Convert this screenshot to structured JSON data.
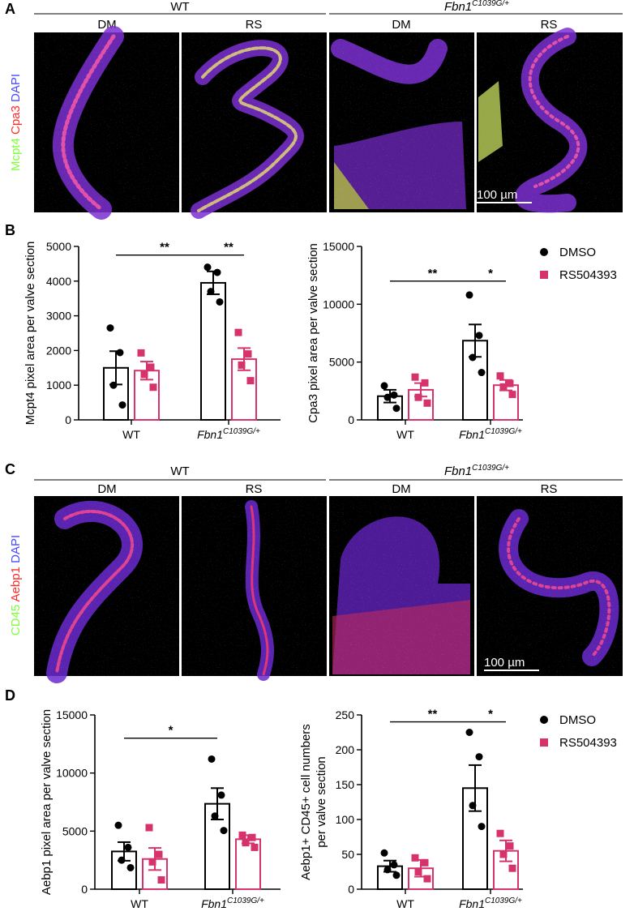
{
  "panels": {
    "A": {
      "letter": "A",
      "group_labels": [
        "WT",
        "Fbn1",
        "C1039G/+"
      ],
      "column_labels": [
        "DM",
        "RS",
        "DM",
        "RS"
      ],
      "stain_labels": [
        "Mcpt4",
        "Cpa3",
        "DAPI"
      ],
      "scale_bar": "100 µm"
    },
    "B": {
      "letter": "B"
    },
    "C": {
      "letter": "C",
      "group_labels": [
        "WT",
        "Fbn1",
        "C1039G/+"
      ],
      "column_labels": [
        "DM",
        "RS",
        "DM",
        "RS"
      ],
      "stain_labels": [
        "CD45",
        "Aebp1",
        "DAPI"
      ],
      "scale_bar": "100 µm"
    },
    "D": {
      "letter": "D"
    }
  },
  "legend": {
    "dmso": "DMSO",
    "rs": "RS504393",
    "colors": {
      "dmso": "#000000",
      "rs": "#d6336c"
    }
  },
  "chart_data": [
    {
      "id": "B-left",
      "type": "bar",
      "ylabel": "Mcpt4 pixel area per valve section",
      "ylim": [
        0,
        5000
      ],
      "yticks": [
        0,
        1000,
        2000,
        3000,
        4000,
        5000
      ],
      "categories": [
        "WT",
        "Fbn1 C1039G/+"
      ],
      "category_text": [
        {
          "main": "WT",
          "sup": ""
        },
        {
          "main": "Fbn1",
          "sup": "C1039G/+"
        }
      ],
      "series": [
        {
          "name": "DMSO",
          "values": [
            1500,
            3950
          ],
          "sem": [
            480,
            330
          ],
          "points": [
            [
              2650,
              1940,
              1000,
              430
            ],
            [
              4400,
              4250,
              3700,
              3400
            ]
          ]
        },
        {
          "name": "RS504393",
          "values": [
            1420,
            1750
          ],
          "sem": [
            260,
            320
          ],
          "points": [
            [
              1930,
              1520,
              1310,
              940
            ],
            [
              2520,
              1900,
              1580,
              1130
            ]
          ]
        }
      ],
      "significance": [
        {
          "from": [
            0,
            0
          ],
          "to": [
            1,
            0
          ],
          "y": 4750,
          "label": "**"
        },
        {
          "from": [
            1,
            0
          ],
          "to": [
            1,
            1
          ],
          "y": 4750,
          "label": "**"
        }
      ]
    },
    {
      "id": "B-right",
      "type": "bar",
      "ylabel": "Cpa3 pixel area per valve section",
      "ylim": [
        0,
        15000
      ],
      "yticks": [
        0,
        5000,
        10000,
        15000
      ],
      "categories": [
        "WT",
        "Fbn1 C1039G/+"
      ],
      "category_text": [
        {
          "main": "WT",
          "sup": ""
        },
        {
          "main": "Fbn1",
          "sup": "C1039G/+"
        }
      ],
      "series": [
        {
          "name": "DMSO",
          "values": [
            2050,
            6850
          ],
          "sem": [
            550,
            1400
          ],
          "points": [
            [
              2950,
              2150,
              1950,
              1000
            ],
            [
              10800,
              7300,
              5400,
              4100
            ]
          ]
        },
        {
          "name": "RS504393",
          "values": [
            2600,
            3000
          ],
          "sem": [
            580,
            450
          ],
          "points": [
            [
              3700,
              3200,
              1950,
              1450
            ],
            [
              3800,
              3150,
              2850,
              2200
            ]
          ]
        }
      ],
      "significance": [
        {
          "from": [
            0,
            0
          ],
          "to": [
            1,
            0
          ],
          "y": 12000,
          "label": "**"
        },
        {
          "from": [
            1,
            0
          ],
          "to": [
            1,
            1
          ],
          "y": 12000,
          "label": "*"
        }
      ]
    },
    {
      "id": "D-left",
      "type": "bar",
      "ylabel": "Aebp1 pixel area per valve section",
      "ylim": [
        0,
        15000
      ],
      "yticks": [
        0,
        5000,
        10000,
        15000
      ],
      "categories": [
        "WT",
        "Fbn1 C1039G/+"
      ],
      "category_text": [
        {
          "main": "WT",
          "sup": ""
        },
        {
          "main": "Fbn1",
          "sup": "C1039G/+"
        }
      ],
      "series": [
        {
          "name": "DMSO",
          "values": [
            3250,
            7350
          ],
          "sem": [
            800,
            1350
          ],
          "points": [
            [
              5500,
              3600,
              2500,
              1850
            ],
            [
              11200,
              8100,
              6300,
              5050
            ]
          ]
        },
        {
          "name": "RS504393",
          "values": [
            2600,
            4300
          ],
          "sem": [
            950,
            350
          ],
          "points": [
            [
              5300,
              3000,
              2350,
              800
            ],
            [
              4650,
              4450,
              4000,
              3600
            ]
          ]
        }
      ],
      "significance": [
        {
          "from": [
            0,
            0
          ],
          "to": [
            1,
            0
          ],
          "y": 13000,
          "label": "*"
        }
      ]
    },
    {
      "id": "D-right",
      "type": "bar",
      "ylabel": [
        "Aebp1+ CD45+ cell numbers",
        "per valve section"
      ],
      "ylim": [
        0,
        250
      ],
      "yticks": [
        0,
        50,
        100,
        150,
        200,
        250
      ],
      "categories": [
        "WT",
        "Fbn1 C1039G/+"
      ],
      "category_text": [
        {
          "main": "WT",
          "sup": ""
        },
        {
          "main": "Fbn1",
          "sup": "C1039G/+"
        }
      ],
      "series": [
        {
          "name": "DMSO",
          "values": [
            33,
            145
          ],
          "sem": [
            8,
            33
          ],
          "points": [
            [
              52,
              35,
              28,
              20
            ],
            [
              225,
              190,
              120,
              90
            ]
          ]
        },
        {
          "name": "RS504393",
          "values": [
            30,
            55
          ],
          "sem": [
            12,
            15
          ],
          "points": [
            [
              45,
              38,
              25,
              15
            ],
            [
              80,
              62,
              50,
              30
            ]
          ]
        }
      ],
      "significance": [
        {
          "from": [
            0,
            0
          ],
          "to": [
            1,
            0
          ],
          "y": 240,
          "label": "**"
        },
        {
          "from": [
            1,
            0
          ],
          "to": [
            1,
            1
          ],
          "y": 240,
          "label": "*"
        }
      ]
    }
  ]
}
